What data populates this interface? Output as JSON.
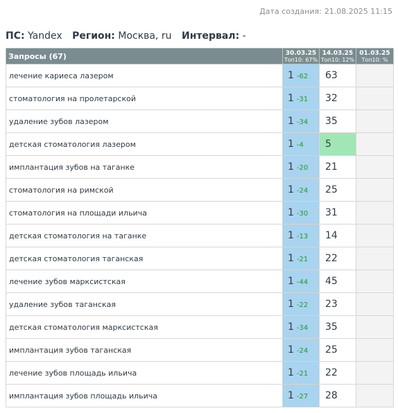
{
  "created": {
    "label": "Дата создания:",
    "value": "21.08.2025 11:15"
  },
  "params": {
    "ps_label": "ПС:",
    "ps_value": "Yandex",
    "region_label": "Регион:",
    "region_value": "Москва, ru",
    "interval_label": "Интервал:",
    "interval_value": "-"
  },
  "table": {
    "header": {
      "queries": "Запросы (67)",
      "columns": [
        {
          "date": "30.03.25",
          "top": "Топ10: 67%"
        },
        {
          "date": "14.03.25",
          "top": "Топ10: 12%"
        },
        {
          "date": "01.03.25",
          "top": "Топ10: %"
        }
      ]
    },
    "rows": [
      {
        "query": "лечение кариеса лазером",
        "pos1": "1",
        "change": "-62",
        "pos2": "63",
        "pos2_highlight": false
      },
      {
        "query": "стоматология на пролетарской",
        "pos1": "1",
        "change": "-31",
        "pos2": "32",
        "pos2_highlight": false
      },
      {
        "query": "удаление зубов лазером",
        "pos1": "1",
        "change": "-34",
        "pos2": "35",
        "pos2_highlight": false
      },
      {
        "query": "детская стоматология лазером",
        "pos1": "1",
        "change": "-4",
        "pos2": "5",
        "pos2_highlight": true
      },
      {
        "query": "имплантация зубов на таганке",
        "pos1": "1",
        "change": "-20",
        "pos2": "21",
        "pos2_highlight": false
      },
      {
        "query": "стоматология на римской",
        "pos1": "1",
        "change": "-24",
        "pos2": "25",
        "pos2_highlight": false
      },
      {
        "query": "стоматология на площади ильича",
        "pos1": "1",
        "change": "-30",
        "pos2": "31",
        "pos2_highlight": false
      },
      {
        "query": "детская стоматология на таганке",
        "pos1": "1",
        "change": "-13",
        "pos2": "14",
        "pos2_highlight": false
      },
      {
        "query": "детская стоматология таганская",
        "pos1": "1",
        "change": "-21",
        "pos2": "22",
        "pos2_highlight": false
      },
      {
        "query": "лечение зубов марксистская",
        "pos1": "1",
        "change": "-44",
        "pos2": "45",
        "pos2_highlight": false
      },
      {
        "query": "удаление зубов таганская",
        "pos1": "1",
        "change": "-22",
        "pos2": "23",
        "pos2_highlight": false
      },
      {
        "query": "детская стоматология марксистская",
        "pos1": "1",
        "change": "-34",
        "pos2": "35",
        "pos2_highlight": false
      },
      {
        "query": "имплантация зубов таганская",
        "pos1": "1",
        "change": "-24",
        "pos2": "25",
        "pos2_highlight": false
      },
      {
        "query": "лечение зубов площадь ильича",
        "pos1": "1",
        "change": "-21",
        "pos2": "22",
        "pos2_highlight": false
      },
      {
        "query": "имплантация зубов площадь ильича",
        "pos1": "1",
        "change": "-27",
        "pos2": "28",
        "pos2_highlight": false
      }
    ],
    "colors": {
      "current_column": "#a9d3ee",
      "improved": "#a2e6b6",
      "change_text": "#1f9a33",
      "header_bg": "#7b8c90"
    }
  }
}
